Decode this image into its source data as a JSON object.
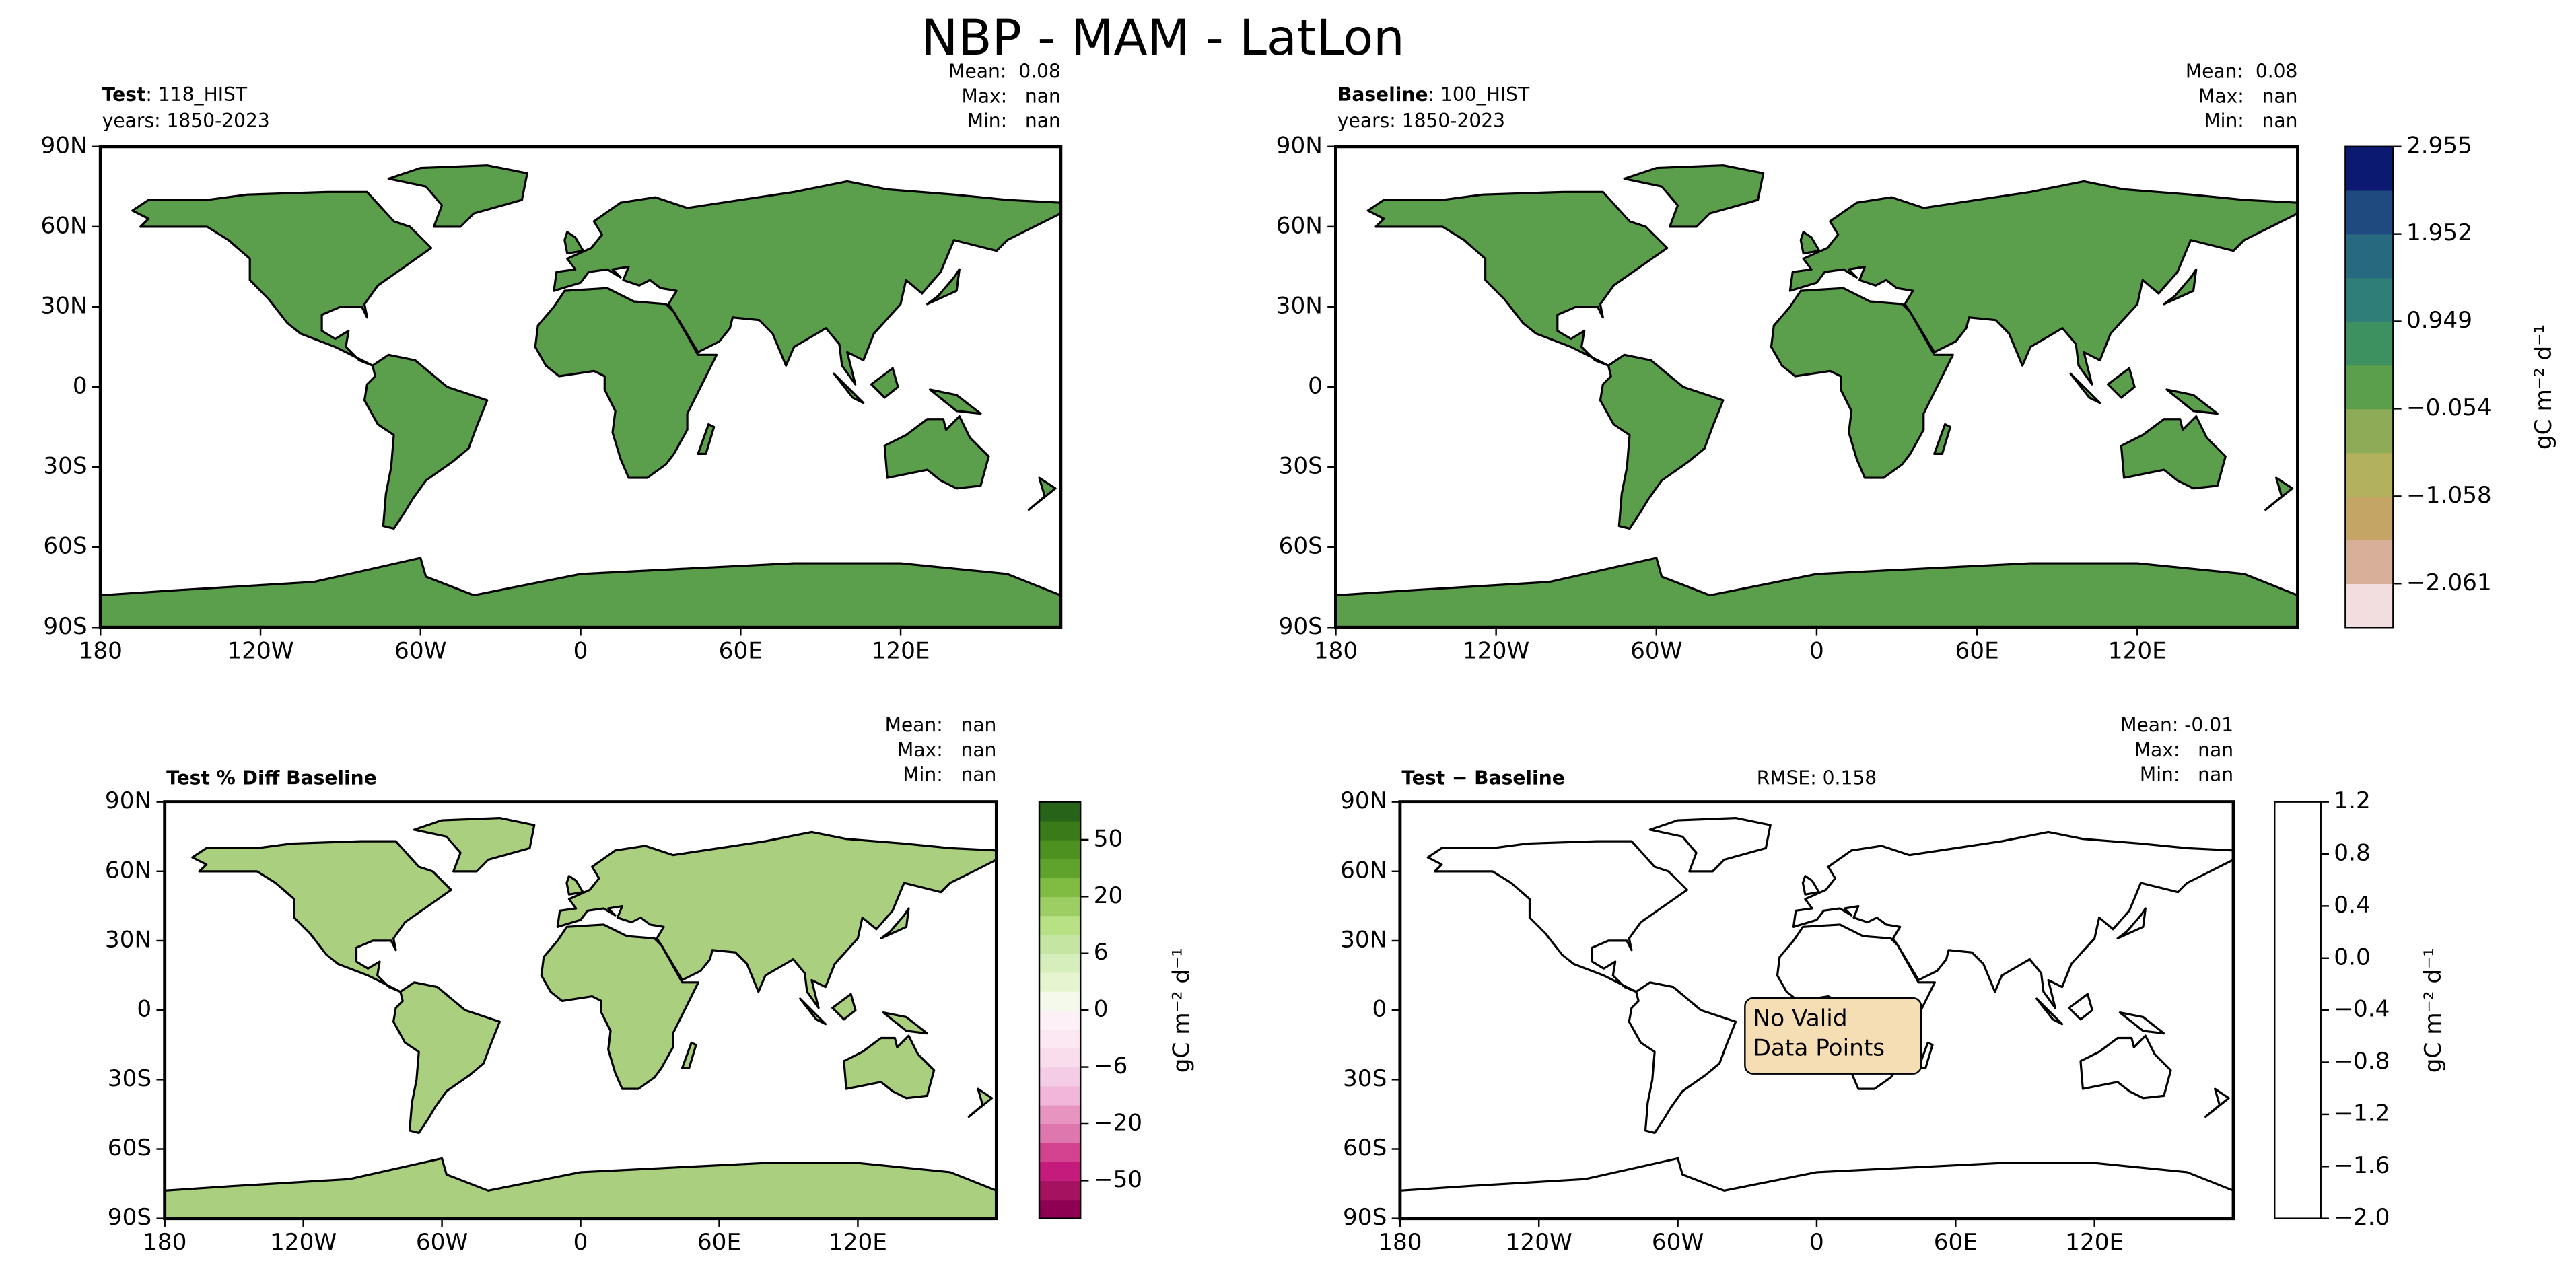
{
  "title": "NBP - MAM - LatLon",
  "chart_data": [
    {
      "type": "map",
      "title_bold": "Test",
      "title_rest": ": 118_HIST",
      "years": "years: 1850-2023",
      "stats": [
        "Mean:  0.08",
        "Max:   nan",
        "Min:   nan"
      ],
      "xlim": [
        -180,
        180
      ],
      "ylim": [
        -90,
        90
      ],
      "xticks": [
        {
          "value": -180,
          "label": "180"
        },
        {
          "value": -120,
          "label": "120W"
        },
        {
          "value": -60,
          "label": "60W"
        },
        0,
        {
          "value": 60,
          "label": "60E"
        },
        {
          "value": 120,
          "label": "120E"
        }
      ],
      "yticks": [
        {
          "value": 90,
          "label": "90N"
        },
        {
          "value": 60,
          "label": "60N"
        },
        {
          "value": 30,
          "label": "30N"
        },
        0,
        {
          "value": -30,
          "label": "30S"
        },
        {
          "value": -60,
          "label": "60S"
        },
        {
          "value": -90,
          "label": "90S"
        }
      ],
      "land_color": "#5b9e4b"
    },
    {
      "type": "map",
      "title_bold": "Baseline",
      "title_rest": ": 100_HIST",
      "years": "years: 1850-2023",
      "stats": [
        "Mean:  0.08",
        "Max:   nan",
        "Min:   nan"
      ],
      "xlim": [
        -180,
        180
      ],
      "ylim": [
        -90,
        90
      ],
      "xticks": [
        {
          "value": -180,
          "label": "180"
        },
        {
          "value": -120,
          "label": "120W"
        },
        {
          "value": -60,
          "label": "60W"
        },
        0,
        {
          "value": 60,
          "label": "60E"
        },
        {
          "value": 120,
          "label": "120E"
        }
      ],
      "yticks": [
        {
          "value": 90,
          "label": "90N"
        },
        {
          "value": 60,
          "label": "60N"
        },
        {
          "value": 30,
          "label": "30N"
        },
        0,
        {
          "value": -30,
          "label": "30S"
        },
        {
          "value": -60,
          "label": "60S"
        },
        {
          "value": -90,
          "label": "90S"
        }
      ],
      "land_color": "#5b9e4b",
      "colorbar": {
        "label": "gC m⁻² d⁻¹",
        "ylim": [
          -2.563,
          2.955
        ],
        "yticks": [
          2.955,
          1.952,
          0.949,
          {
            "value": -0.054,
            "label": "−0.054"
          },
          {
            "value": -1.058,
            "label": "−1.058"
          },
          {
            "value": -2.061,
            "label": "−2.061"
          }
        ],
        "colors": [
          "#f2dede",
          "#d8b09a",
          "#c4a565",
          "#b2b25e",
          "#8eab58",
          "#5b9e4b",
          "#3d9060",
          "#2f7f78",
          "#276a80",
          "#1e4a80",
          "#0b1a70"
        ]
      }
    },
    {
      "type": "map",
      "title_bold": "Test % Diff Baseline",
      "stats": [
        "Mean:   nan",
        "Max:   nan",
        "Min:   nan"
      ],
      "xlim": [
        -180,
        180
      ],
      "ylim": [
        -90,
        90
      ],
      "xticks": [
        {
          "value": -180,
          "label": "180"
        },
        {
          "value": -120,
          "label": "120W"
        },
        {
          "value": -60,
          "label": "60W"
        },
        0,
        {
          "value": 60,
          "label": "60E"
        },
        {
          "value": 120,
          "label": "120E"
        }
      ],
      "yticks": [
        {
          "value": 90,
          "label": "90N"
        },
        {
          "value": 60,
          "label": "60N"
        },
        {
          "value": 30,
          "label": "30N"
        },
        0,
        {
          "value": -30,
          "label": "30S"
        },
        {
          "value": -60,
          "label": "60S"
        },
        {
          "value": -90,
          "label": "90S"
        }
      ],
      "land_color": "#a9cf7f",
      "colorbar": {
        "label": "gC m⁻² d⁻¹",
        "levels": [
          -100,
          -70,
          -50,
          -40,
          -30,
          -20,
          -15,
          -10,
          -6,
          -4,
          -2,
          0,
          2,
          4,
          6,
          10,
          15,
          20,
          30,
          40,
          50,
          70,
          100
        ],
        "yticks": [
          50,
          20,
          6,
          0,
          {
            "value": -6,
            "label": "−6"
          },
          {
            "value": -20,
            "label": "−20"
          },
          {
            "value": -50,
            "label": "−50"
          }
        ],
        "colors": [
          "#8e0152",
          "#a5125f",
          "#c51b7d",
          "#d3438f",
          "#de77ae",
          "#e794c1",
          "#f1b6da",
          "#f5cce5",
          "#f9dded",
          "#fbe8f2",
          "#fdf1f7",
          "#f4f9ec",
          "#e6f5d0",
          "#d6eebb",
          "#c5e5a2",
          "#b8e186",
          "#9cce64",
          "#7fbc41",
          "#5fa22c",
          "#4d9221",
          "#3a7a19",
          "#276419"
        ]
      }
    },
    {
      "type": "map",
      "title_bold": "Test − Baseline",
      "rmse": "RMSE: 0.158",
      "stats": [
        "Mean: -0.01",
        "Max:   nan",
        "Min:   nan"
      ],
      "annotation": [
        "No Valid",
        "Data Points"
      ],
      "xlim": [
        -180,
        180
      ],
      "ylim": [
        -90,
        90
      ],
      "xticks": [
        {
          "value": -180,
          "label": "180"
        },
        {
          "value": -120,
          "label": "120W"
        },
        {
          "value": -60,
          "label": "60W"
        },
        0,
        {
          "value": 60,
          "label": "60E"
        },
        {
          "value": 120,
          "label": "120E"
        }
      ],
      "yticks": [
        {
          "value": 90,
          "label": "90N"
        },
        {
          "value": 60,
          "label": "60N"
        },
        {
          "value": 30,
          "label": "30N"
        },
        0,
        {
          "value": -30,
          "label": "30S"
        },
        {
          "value": -60,
          "label": "60S"
        },
        {
          "value": -90,
          "label": "90S"
        }
      ],
      "land_color": "none",
      "colorbar": {
        "label": "gC m⁻² d⁻¹",
        "ylim": [
          -2,
          1.2
        ],
        "yticks": [
          1.2,
          0.8,
          0.4,
          {
            "value": 0,
            "label": "0.0"
          },
          {
            "value": -0.4,
            "label": "−0.4"
          },
          {
            "value": -0.8,
            "label": "−0.8"
          },
          {
            "value": -1.2,
            "label": "−1.2"
          },
          {
            "value": -1.6,
            "label": "−1.6"
          },
          {
            "value": -2,
            "label": "−2.0"
          }
        ],
        "colors": [
          "#ffffff"
        ]
      }
    }
  ]
}
